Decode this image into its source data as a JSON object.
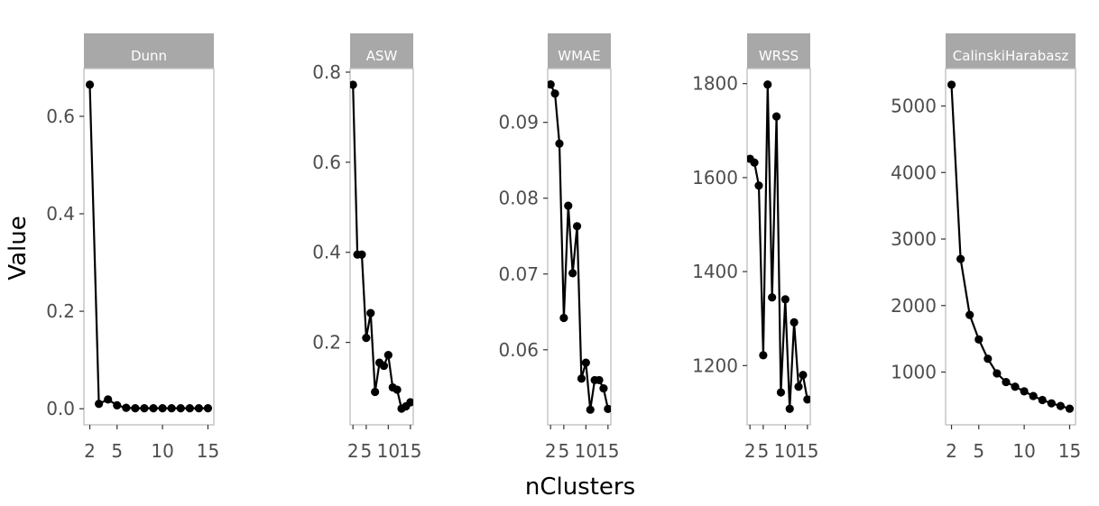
{
  "figure": {
    "xlabel": "nClusters",
    "ylabel": "Value"
  },
  "chart_data": [
    {
      "type": "line",
      "title": "Dunn",
      "x": [
        2,
        3,
        4,
        5,
        6,
        7,
        8,
        9,
        10,
        11,
        12,
        13,
        14,
        15
      ],
      "y": [
        0.665,
        0.01,
        0.019,
        0.007,
        0.002,
        0.001,
        0.001,
        0.001,
        0.001,
        0.001,
        0.001,
        0.001,
        0.001,
        0.001
      ],
      "yticks": [
        0.0,
        0.2,
        0.4,
        0.6
      ],
      "ytick_labels": [
        "0.0",
        "0.2",
        "0.4",
        "0.6"
      ],
      "xticks": [
        2,
        5,
        10,
        15
      ],
      "xtick_labels": [
        "2",
        "5",
        "10",
        "15"
      ],
      "xlim": [
        1.35,
        15.65
      ],
      "ylim": [
        -0.033,
        0.698
      ]
    },
    {
      "type": "line",
      "title": "ASW",
      "x": [
        2,
        3,
        4,
        5,
        6,
        7,
        8,
        9,
        10,
        11,
        12,
        13,
        14,
        15
      ],
      "y": [
        0.772,
        0.395,
        0.395,
        0.21,
        0.265,
        0.09,
        0.155,
        0.148,
        0.172,
        0.1,
        0.095,
        0.053,
        0.058,
        0.067
      ],
      "yticks": [
        0.2,
        0.4,
        0.6,
        0.8
      ],
      "ytick_labels": [
        "0.2",
        "0.4",
        "0.6",
        "0.8"
      ],
      "xticks": [
        2,
        5,
        10,
        15
      ],
      "xtick_labels": [
        "2",
        "5",
        "10",
        "15"
      ],
      "xlim": [
        1.35,
        15.65
      ],
      "ylim": [
        0.017,
        0.808
      ]
    },
    {
      "type": "line",
      "title": "WMAE",
      "x": [
        2,
        3,
        4,
        5,
        6,
        7,
        8,
        9,
        10,
        11,
        12,
        13,
        14,
        15
      ],
      "y": [
        0.095,
        0.0938,
        0.0872,
        0.0642,
        0.079,
        0.0701,
        0.0763,
        0.0562,
        0.0583,
        0.0521,
        0.056,
        0.056,
        0.0549,
        0.0522
      ],
      "yticks": [
        0.06,
        0.07,
        0.08,
        0.09
      ],
      "ytick_labels": [
        "0.06",
        "0.07",
        "0.08",
        "0.09"
      ],
      "xticks": [
        2,
        5,
        10,
        15
      ],
      "xtick_labels": [
        "2",
        "5",
        "10",
        "15"
      ],
      "xlim": [
        1.35,
        15.65
      ],
      "ylim": [
        0.0501,
        0.0971
      ]
    },
    {
      "type": "line",
      "title": "WRSS",
      "x": [
        2,
        3,
        4,
        5,
        6,
        7,
        8,
        9,
        10,
        11,
        12,
        13,
        14,
        15
      ],
      "y": [
        1640,
        1632,
        1583,
        1222,
        1798,
        1345,
        1730,
        1143,
        1341,
        1108,
        1292,
        1155,
        1180,
        1128
      ],
      "yticks": [
        1200,
        1400,
        1600,
        1800
      ],
      "ytick_labels": [
        "1200",
        "1400",
        "1600",
        "1800"
      ],
      "xticks": [
        2,
        5,
        10,
        15
      ],
      "xtick_labels": [
        "2",
        "5",
        "10",
        "15"
      ],
      "xlim": [
        1.35,
        15.65
      ],
      "ylim": [
        1074,
        1832
      ]
    },
    {
      "type": "line",
      "title": "CalinskiHarabasz",
      "x": [
        2,
        3,
        4,
        5,
        6,
        7,
        8,
        9,
        10,
        11,
        12,
        13,
        14,
        15
      ],
      "y": [
        5320,
        2700,
        1860,
        1490,
        1200,
        980,
        850,
        780,
        710,
        640,
        580,
        530,
        490,
        450
      ],
      "yticks": [
        1000,
        2000,
        3000,
        4000,
        5000
      ],
      "ytick_labels": [
        "1000",
        "2000",
        "3000",
        "4000",
        "5000"
      ],
      "xticks": [
        2,
        5,
        10,
        15
      ],
      "xtick_labels": [
        "2",
        "5",
        "10",
        "15"
      ],
      "xlim": [
        1.35,
        15.65
      ],
      "ylim": [
        207,
        5563
      ]
    }
  ],
  "colors": {
    "strip_fill": "#a8a8a8",
    "strip_text": "#ffffff",
    "panel_border": "#bdbdbd",
    "line": "#000000",
    "point": "#000000",
    "tick_text": "#4d4d4d"
  }
}
